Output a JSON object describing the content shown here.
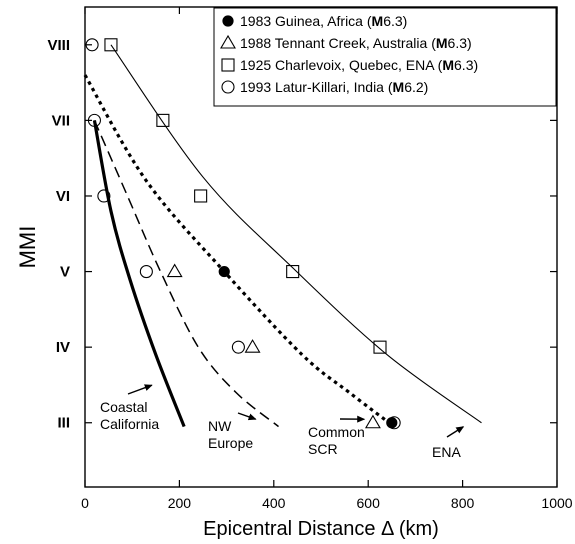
{
  "chart_data": {
    "type": "scatter",
    "xlabel": "Epicentral Distance Δ (km)",
    "ylabel": "MMI",
    "xlim": [
      0,
      1000
    ],
    "ylim": [
      2.15,
      8.5
    ],
    "x_ticks": [
      0,
      200,
      400,
      600,
      800,
      1000
    ],
    "y_ticks": [
      {
        "value": 3,
        "label": "III"
      },
      {
        "value": 4,
        "label": "IV"
      },
      {
        "value": 5,
        "label": "V"
      },
      {
        "value": 6,
        "label": "VI"
      },
      {
        "value": 7,
        "label": "VII"
      },
      {
        "value": 8,
        "label": "VIII"
      }
    ],
    "grid": false,
    "legend_position": "top-right",
    "series": [
      {
        "name": "1983 Guinea, Africa",
        "magnitude": "6.3",
        "marker": "filled-circle",
        "points": [
          [
            295,
            5
          ],
          [
            650,
            3
          ]
        ]
      },
      {
        "name": "1988 Tennant Creek, Australia",
        "magnitude": "6.3",
        "marker": "open-triangle",
        "points": [
          [
            190,
            5
          ],
          [
            355,
            4
          ],
          [
            610,
            3
          ]
        ]
      },
      {
        "name": "1925 Charlevoix, Quebec, ENA",
        "magnitude": "6.3",
        "marker": "open-square",
        "points": [
          [
            55,
            8
          ],
          [
            165,
            7
          ],
          [
            245,
            6
          ],
          [
            440,
            5
          ],
          [
            625,
            4
          ]
        ]
      },
      {
        "name": "1993 Latur-Killari, India",
        "magnitude": "6.2",
        "marker": "open-circle",
        "points": [
          [
            15,
            8
          ],
          [
            20,
            7
          ],
          [
            40,
            6
          ],
          [
            130,
            5
          ],
          [
            325,
            4
          ],
          [
            655,
            3
          ]
        ]
      }
    ],
    "curves": [
      {
        "label": "Coastal California",
        "style": "thick-solid",
        "points": [
          [
            20,
            7
          ],
          [
            55,
            5.8
          ],
          [
            95,
            4.9
          ],
          [
            150,
            3.9
          ],
          [
            210,
            2.95
          ]
        ]
      },
      {
        "label": "NW Europe",
        "style": "dashed",
        "points": [
          [
            20,
            7
          ],
          [
            90,
            6
          ],
          [
            160,
            5
          ],
          [
            240,
            4
          ],
          [
            320,
            3.4
          ],
          [
            410,
            2.95
          ]
        ]
      },
      {
        "label": "Common SCR",
        "style": "dotted",
        "points": [
          [
            0,
            7.6
          ],
          [
            130,
            6.2
          ],
          [
            295,
            5
          ],
          [
            460,
            3.9
          ],
          [
            560,
            3.4
          ],
          [
            640,
            3.02
          ]
        ]
      },
      {
        "label": "ENA",
        "style": "thin-solid",
        "points": [
          [
            55,
            8
          ],
          [
            250,
            6.25
          ],
          [
            440,
            5.05
          ],
          [
            640,
            3.9
          ],
          [
            840,
            3
          ]
        ]
      }
    ],
    "annotations": [
      {
        "text_lines": [
          "Coastal",
          "California"
        ],
        "arrow_target": [
          150,
          3.55
        ]
      },
      {
        "text_lines": [
          "NW",
          "Europe"
        ],
        "arrow_target": [
          370,
          3.1
        ]
      },
      {
        "text_lines": [
          "Common",
          "SCR"
        ],
        "arrow_target": [
          600,
          3.1
        ]
      },
      {
        "text_lines": [
          "ENA"
        ],
        "arrow_target": [
          810,
          3
        ]
      }
    ]
  }
}
